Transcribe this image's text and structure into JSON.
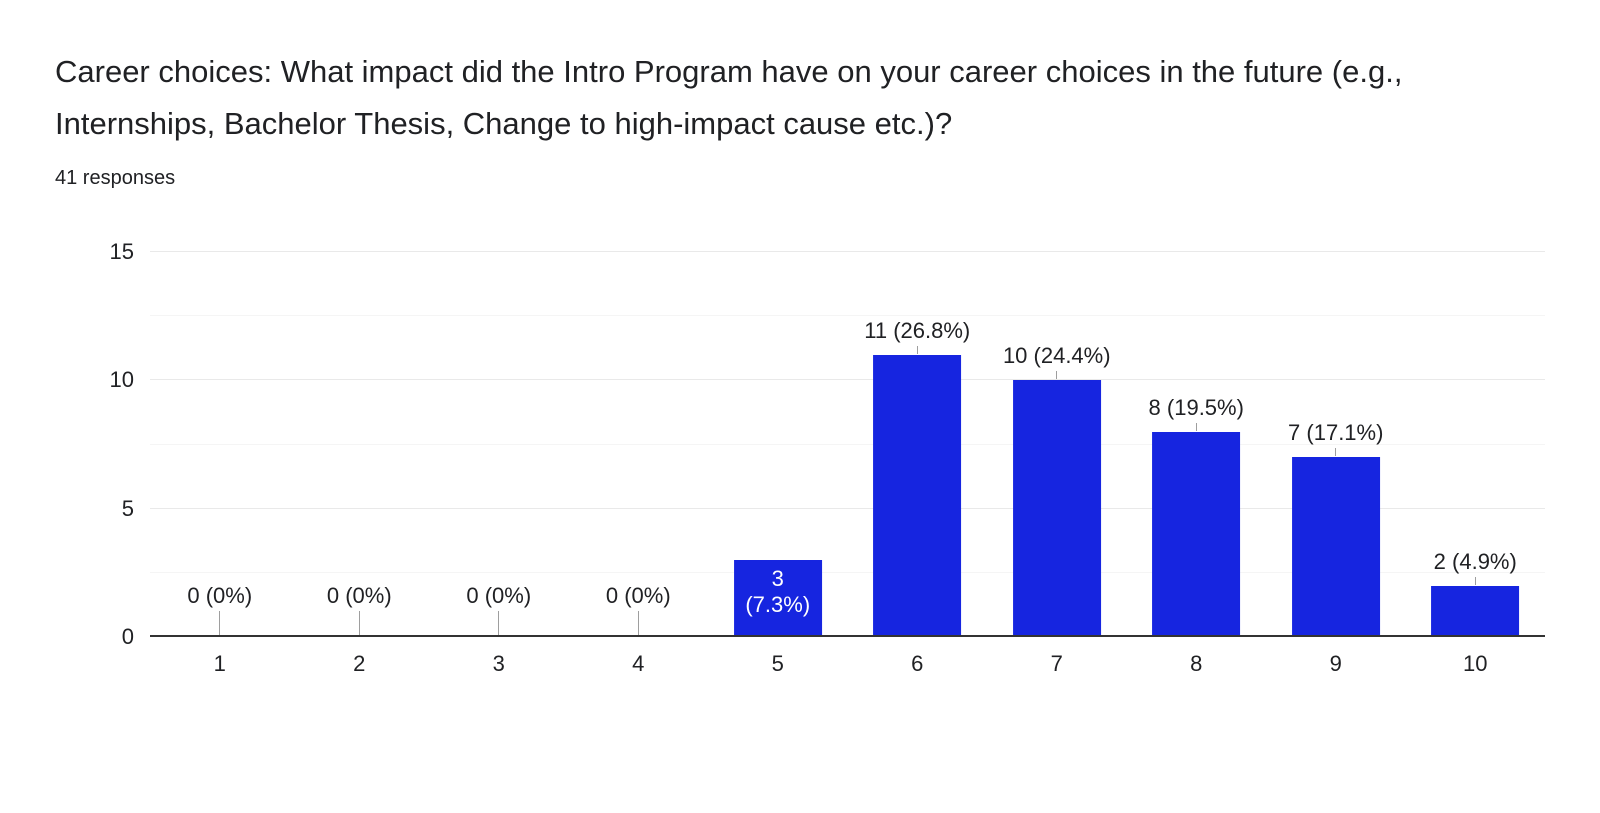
{
  "header": {
    "title": "Career choices: What impact did the Intro Program have on your career choices in the future (e.g., Internships, Bachelor Thesis, Change to high-impact cause etc.)?",
    "responses": "41 responses"
  },
  "chart_data": {
    "type": "bar",
    "title": "Career choices: What impact did the Intro Program have on your career choices in the future (e.g., Internships, Bachelor Thesis, Change to high-impact cause etc.)?",
    "subtitle": "41 responses",
    "categories": [
      "1",
      "2",
      "3",
      "4",
      "5",
      "6",
      "7",
      "8",
      "9",
      "10"
    ],
    "values": [
      0,
      0,
      0,
      0,
      3,
      11,
      10,
      8,
      7,
      2
    ],
    "labels": [
      "0 (0%)",
      "0 (0%)",
      "0 (0%)",
      "0 (0%)",
      "3 (7.3%)",
      "11 (26.8%)",
      "10 (24.4%)",
      "8 (19.5%)",
      "7 (17.1%)",
      "2 (4.9%)"
    ],
    "label_placement": [
      "outside",
      "outside",
      "outside",
      "outside",
      "inside",
      "outside",
      "outside",
      "outside",
      "outside",
      "outside"
    ],
    "xlabel": "",
    "ylabel": "",
    "y_ticks": [
      0,
      5,
      10,
      15
    ],
    "ylim": [
      0,
      15
    ],
    "grid": "on",
    "legend": "none",
    "bar_color": "#1625e0",
    "label_color": "#202124",
    "inside_label_color": "#ffffff"
  }
}
